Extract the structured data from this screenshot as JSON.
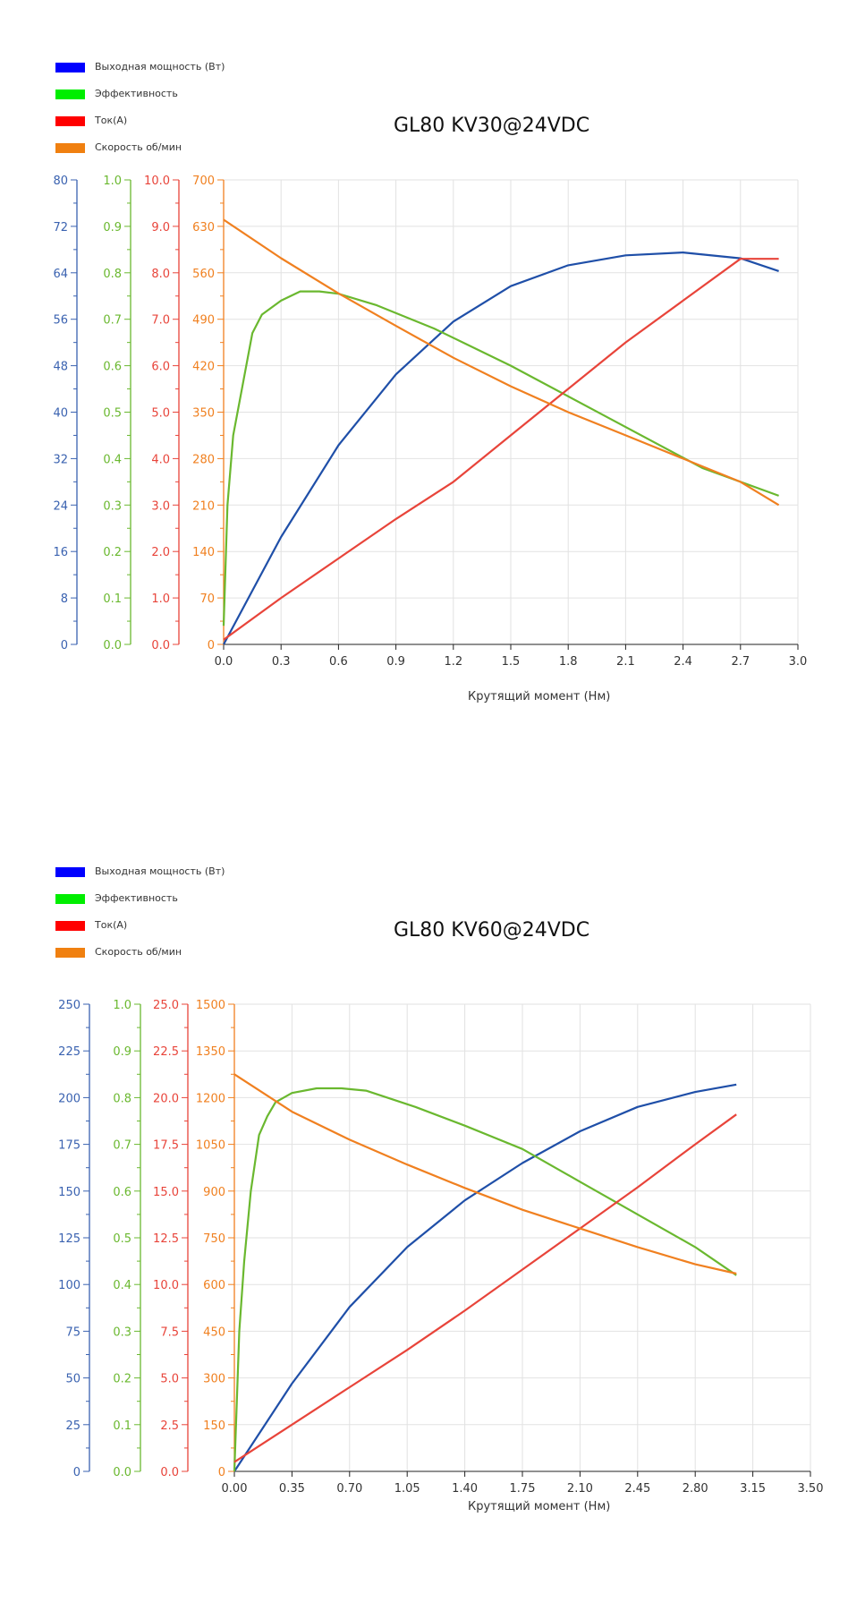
{
  "chart_data": [
    {
      "type": "line",
      "title": "GL80 KV30@24VDC",
      "xlabel": "Крутящий момент (Нм)",
      "xlim": [
        0,
        3.0
      ],
      "xticks": [
        "0.0",
        "0.3",
        "0.6",
        "0.9",
        "1.2",
        "1.5",
        "1.8",
        "2.1",
        "2.4",
        "2.7",
        "3.0"
      ],
      "legend": [
        "Выходная мощность (Вт)",
        "Эффективность",
        "Ток(А)",
        "Скорость об/мин"
      ],
      "legend_placement": "top-left",
      "grid": true,
      "colors": {
        "power": "#1f4fa8",
        "efficiency": "#6ab82f",
        "current": "#e8443a",
        "speed": "#f08020"
      },
      "legend_colors": [
        "#0000ff",
        "#00ee00",
        "#ff0000",
        "#f08010"
      ],
      "axes": [
        {
          "series": "power",
          "min": 0,
          "max": 80,
          "ticks": [
            "0",
            "8",
            "16",
            "24",
            "32",
            "40",
            "48",
            "56",
            "64",
            "72",
            "80"
          ]
        },
        {
          "series": "efficiency",
          "min": 0,
          "max": 1.0,
          "ticks": [
            "0.0",
            "0.1",
            "0.2",
            "0.3",
            "0.4",
            "0.5",
            "0.6",
            "0.7",
            "0.8",
            "0.9",
            "1.0"
          ]
        },
        {
          "series": "current",
          "min": 0,
          "max": 10.0,
          "ticks": [
            "0.0",
            "1.0",
            "2.0",
            "3.0",
            "4.0",
            "5.0",
            "6.0",
            "7.0",
            "8.0",
            "9.0",
            "10.0"
          ]
        },
        {
          "series": "speed",
          "min": 0,
          "max": 700,
          "ticks": [
            "0",
            "70",
            "140",
            "210",
            "280",
            "350",
            "420",
            "490",
            "560",
            "630",
            "700"
          ]
        }
      ],
      "series": [
        {
          "key": "power",
          "x": [
            0,
            0.3,
            0.6,
            0.9,
            1.2,
            1.5,
            1.8,
            2.1,
            2.4,
            2.7,
            2.9
          ],
          "values": [
            0,
            18.5,
            34.3,
            46.5,
            55.6,
            61.7,
            65.3,
            67,
            67.5,
            66.5,
            64.3
          ]
        },
        {
          "key": "efficiency",
          "x": [
            0,
            0.02,
            0.05,
            0.1,
            0.15,
            0.2,
            0.3,
            0.4,
            0.5,
            0.6,
            0.8,
            1.1,
            1.5,
            2.0,
            2.5,
            2.9
          ],
          "values": [
            0.04,
            0.3,
            0.45,
            0.56,
            0.67,
            0.71,
            0.74,
            0.76,
            0.76,
            0.755,
            0.73,
            0.68,
            0.6,
            0.49,
            0.38,
            0.32
          ]
        },
        {
          "key": "current",
          "x": [
            0,
            0.3,
            0.6,
            0.9,
            1.2,
            1.5,
            1.8,
            2.1,
            2.4,
            2.7,
            2.9
          ],
          "values": [
            0.1,
            1.0,
            1.85,
            2.7,
            3.5,
            4.5,
            5.5,
            6.5,
            7.4,
            8.3,
            8.3
          ]
        },
        {
          "key": "speed",
          "x": [
            0,
            0.3,
            0.6,
            0.9,
            1.2,
            1.5,
            1.8,
            2.1,
            2.4,
            2.7,
            2.9
          ],
          "values": [
            640,
            582,
            529,
            480,
            432,
            389,
            350,
            315,
            280,
            245,
            210
          ]
        }
      ]
    },
    {
      "type": "line",
      "title": "GL80 KV60@24VDC",
      "xlabel": "Крутящий момент (Нм)",
      "xlim": [
        0,
        3.5
      ],
      "xticks": [
        "0.00",
        "0.35",
        "0.70",
        "1.05",
        "1.40",
        "1.75",
        "2.10",
        "2.45",
        "2.80",
        "3.15",
        "3.50"
      ],
      "legend": [
        "Выходная мощность (Вт)",
        "Эффективность",
        "Ток(А)",
        "Скорость об/мин"
      ],
      "legend_placement": "top-left",
      "grid": true,
      "colors": {
        "power": "#1f4fa8",
        "efficiency": "#6ab82f",
        "current": "#e8443a",
        "speed": "#f08020"
      },
      "legend_colors": [
        "#0000ff",
        "#00ee00",
        "#ff0000",
        "#f08010"
      ],
      "axes": [
        {
          "series": "power",
          "min": 0,
          "max": 250,
          "ticks": [
            "0",
            "25",
            "50",
            "75",
            "100",
            "125",
            "150",
            "175",
            "200",
            "225",
            "250"
          ]
        },
        {
          "series": "efficiency",
          "min": 0,
          "max": 1.0,
          "ticks": [
            "0.0",
            "0.1",
            "0.2",
            "0.3",
            "0.4",
            "0.5",
            "0.6",
            "0.7",
            "0.8",
            "0.9",
            "1.0"
          ]
        },
        {
          "series": "current",
          "min": 0,
          "max": 25.0,
          "ticks": [
            "0.0",
            "2.5",
            "5.0",
            "7.5",
            "10.0",
            "12.5",
            "15.0",
            "17.5",
            "20.0",
            "22.5",
            "25.0"
          ]
        },
        {
          "series": "speed",
          "min": 0,
          "max": 1500,
          "ticks": [
            "0",
            "150",
            "300",
            "450",
            "600",
            "750",
            "900",
            "1050",
            "1200",
            "1350",
            "1500"
          ]
        }
      ],
      "series": [
        {
          "key": "power",
          "x": [
            0,
            0.35,
            0.7,
            1.05,
            1.4,
            1.75,
            2.1,
            2.45,
            2.8,
            3.05
          ],
          "values": [
            0,
            47,
            88,
            120,
            145,
            165,
            182,
            195,
            203,
            207
          ]
        },
        {
          "key": "efficiency",
          "x": [
            0,
            0.03,
            0.06,
            0.1,
            0.15,
            0.2,
            0.25,
            0.35,
            0.5,
            0.65,
            0.8,
            1.1,
            1.4,
            1.75,
            2.1,
            2.45,
            2.8,
            3.05
          ],
          "values": [
            0,
            0.3,
            0.45,
            0.6,
            0.72,
            0.76,
            0.79,
            0.81,
            0.82,
            0.82,
            0.815,
            0.78,
            0.74,
            0.69,
            0.62,
            0.55,
            0.48,
            0.42
          ]
        },
        {
          "key": "current",
          "x": [
            0,
            0.35,
            0.7,
            1.05,
            1.4,
            1.75,
            2.1,
            2.45,
            2.8,
            3.05
          ],
          "values": [
            0.5,
            2.5,
            4.5,
            6.5,
            8.6,
            10.8,
            13.0,
            15.2,
            17.5,
            19.1
          ]
        },
        {
          "key": "speed",
          "x": [
            0,
            0.35,
            0.7,
            1.05,
            1.4,
            1.75,
            2.1,
            2.45,
            2.8,
            3.05
          ],
          "values": [
            1275,
            1155,
            1065,
            985,
            910,
            840,
            780,
            720,
            665,
            635
          ]
        }
      ]
    }
  ]
}
